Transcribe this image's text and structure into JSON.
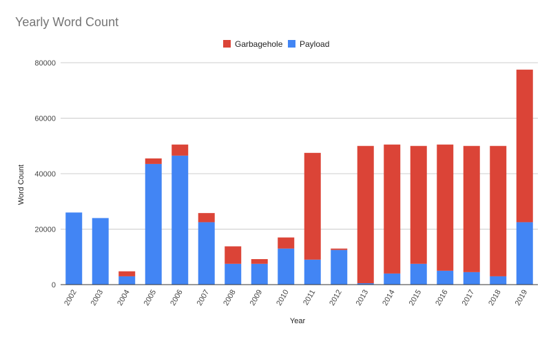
{
  "chart_data": {
    "type": "bar",
    "stacked": true,
    "title": "Yearly Word Count",
    "xlabel": "Year",
    "ylabel": "Word Count",
    "ylim": [
      0,
      80000
    ],
    "yticks": [
      0,
      20000,
      40000,
      60000,
      80000
    ],
    "legend_position": "top-center",
    "grid": true,
    "categories": [
      "2002",
      "2003",
      "2004",
      "2005",
      "2006",
      "2007",
      "2008",
      "2009",
      "2010",
      "2011",
      "2012",
      "2013",
      "2014",
      "2015",
      "2016",
      "2017",
      "2018",
      "2019"
    ],
    "series": [
      {
        "name": "Payload",
        "color": "#4285F4",
        "values": [
          26000,
          24000,
          3000,
          43500,
          46500,
          22500,
          7500,
          7500,
          13000,
          9000,
          12500,
          500,
          4000,
          7500,
          5000,
          4500,
          3000,
          22500
        ]
      },
      {
        "name": "Garbagehole",
        "color": "#DB4437",
        "values": [
          0,
          0,
          1800,
          2000,
          4000,
          3300,
          6300,
          1700,
          4000,
          38500,
          500,
          49500,
          46500,
          42500,
          45500,
          45500,
          47000,
          55000
        ]
      }
    ],
    "legend_order": [
      "Garbagehole",
      "Payload"
    ]
  }
}
